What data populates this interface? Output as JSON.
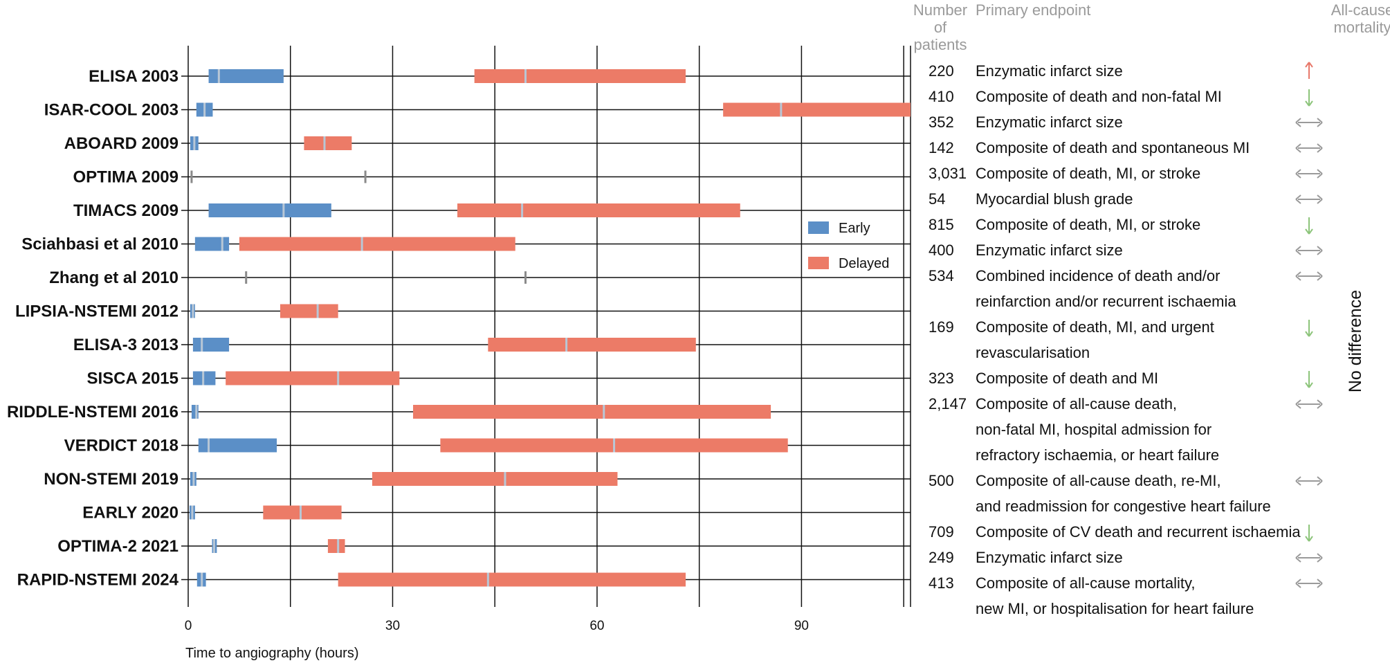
{
  "chart_data": {
    "type": "bar",
    "subtype": "floating-range-gantt",
    "xlabel": "Time to angiography (hours)",
    "xlim": [
      0,
      106
    ],
    "xticks": [
      0,
      30,
      60,
      90
    ],
    "grid": true,
    "legend_position": "center-right",
    "colors": {
      "early": "#5b8fc7",
      "delayed": "#ec7b67",
      "median": "#b8c7d6",
      "arrow_up": "#e8786a",
      "arrow_down": "#8cc47a",
      "arrow_neutral": "#9a9a9a",
      "header": "#9a9a9a"
    },
    "legend": [
      {
        "key": "early",
        "label": "Early"
      },
      {
        "key": "delayed",
        "label": "Delayed"
      }
    ],
    "headers": {
      "patients": [
        "Number",
        "of",
        "patients"
      ],
      "endpoint": "Primary endpoint",
      "mortality": [
        "All-cause",
        "mortality"
      ]
    },
    "side_label": "No difference",
    "trials": [
      {
        "name": "ELISA 2003",
        "early": [
          3,
          14,
          4.5
        ],
        "delayed": [
          42,
          73,
          49.5
        ]
      },
      {
        "name": "ISAR-COOL 2003",
        "early": [
          1.2,
          3.6,
          2.4
        ],
        "delayed": [
          78.5,
          106,
          87
        ]
      },
      {
        "name": "ABOARD 2009",
        "early": [
          0.3,
          1.5,
          0.9
        ],
        "delayed": [
          17,
          24,
          20
        ]
      },
      {
        "name": "OPTIMA 2009",
        "early": [
          0.5,
          0.5,
          0.5
        ],
        "delayed": [
          26,
          26,
          26
        ]
      },
      {
        "name": "TIMACS 2009",
        "early": [
          3,
          21,
          14
        ],
        "delayed": [
          39.5,
          81,
          49
        ]
      },
      {
        "name": "Sciahbasi et al 2010",
        "early": [
          1,
          6,
          5
        ],
        "delayed": [
          7.5,
          48,
          25.5
        ]
      },
      {
        "name": "Zhang et al 2010",
        "early": [
          8.5,
          8.5,
          8.5
        ],
        "delayed": [
          49.5,
          49.5,
          49.5
        ]
      },
      {
        "name": "LIPSIA-NSTEMI 2012",
        "early": [
          0.3,
          1,
          0.7
        ],
        "delayed": [
          13.5,
          22,
          19
        ]
      },
      {
        "name": "ELISA-3 2013",
        "early": [
          0.7,
          6,
          2
        ],
        "delayed": [
          44,
          74.5,
          55.5
        ]
      },
      {
        "name": "SISCA 2015",
        "early": [
          0.7,
          4,
          2.2
        ],
        "delayed": [
          5.5,
          31,
          22
        ]
      },
      {
        "name": "RIDDLE-NSTEMI 2016",
        "early": [
          0.5,
          1.5,
          1.2
        ],
        "delayed": [
          33,
          85.5,
          61
        ]
      },
      {
        "name": "VERDICT 2018",
        "early": [
          1.5,
          13,
          3
        ],
        "delayed": [
          37,
          88,
          62.5
        ]
      },
      {
        "name": "NON-STEMI 2019",
        "early": [
          0.3,
          1.2,
          0.8
        ],
        "delayed": [
          27,
          63,
          46.5
        ]
      },
      {
        "name": "EARLY 2020",
        "early": [
          0.2,
          1,
          0.6
        ],
        "delayed": [
          11,
          22.5,
          16.5
        ]
      },
      {
        "name": "OPTIMA-2 2021",
        "early": [
          3.5,
          4.2,
          3.8
        ],
        "delayed": [
          20.5,
          23,
          22
        ]
      },
      {
        "name": "RAPID-NSTEMI 2024",
        "early": [
          1.3,
          2.6,
          2
        ],
        "delayed": [
          22,
          73,
          44
        ]
      }
    ],
    "table": [
      {
        "patients": "220",
        "endpoint": [
          "Enzymatic infarct size"
        ],
        "mortality": "up"
      },
      {
        "patients": "410",
        "endpoint": [
          "Composite of death and non-fatal MI"
        ],
        "mortality": "down"
      },
      {
        "patients": "352",
        "endpoint": [
          "Enzymatic infarct size"
        ],
        "mortality": "neutral"
      },
      {
        "patients": "142",
        "endpoint": [
          "Composite of death and spontaneous MI"
        ],
        "mortality": "neutral"
      },
      {
        "patients": "3,031",
        "endpoint": [
          "Composite of death, MI, or stroke"
        ],
        "mortality": "neutral"
      },
      {
        "patients": "54",
        "endpoint": [
          "Myocardial blush grade"
        ],
        "mortality": "neutral"
      },
      {
        "patients": "815",
        "endpoint": [
          "Composite of death, MI, or stroke"
        ],
        "mortality": "down"
      },
      {
        "patients": "400",
        "endpoint": [
          "Enzymatic infarct size"
        ],
        "mortality": "neutral"
      },
      {
        "patients": "534",
        "endpoint": [
          "Combined incidence of death and/or",
          "reinfarction and/or recurrent ischaemia"
        ],
        "mortality": "neutral"
      },
      {
        "patients": "169",
        "endpoint": [
          "Composite of death, MI, and urgent",
          "revascularisation"
        ],
        "mortality": "down"
      },
      {
        "patients": "323",
        "endpoint": [
          "Composite of death and MI"
        ],
        "mortality": "down"
      },
      {
        "patients": "2,147",
        "endpoint": [
          "Composite of all-cause death,",
          "non-fatal MI, hospital admission for",
          "refractory ischaemia, or heart failure"
        ],
        "mortality": "neutral"
      },
      {
        "patients": "500",
        "endpoint": [
          "Composite of all-cause death, re-MI,",
          "and readmission for congestive heart failure"
        ],
        "mortality": "neutral"
      },
      {
        "patients": "709",
        "endpoint": [
          "Composite of CV death and recurrent ischaemia"
        ],
        "mortality": "down"
      },
      {
        "patients": "249",
        "endpoint": [
          "Enzymatic infarct size"
        ],
        "mortality": "neutral"
      },
      {
        "patients": "413",
        "endpoint": [
          "Composite of all-cause mortality,",
          "new MI, or hospitalisation for heart failure"
        ],
        "mortality": "neutral"
      }
    ]
  }
}
